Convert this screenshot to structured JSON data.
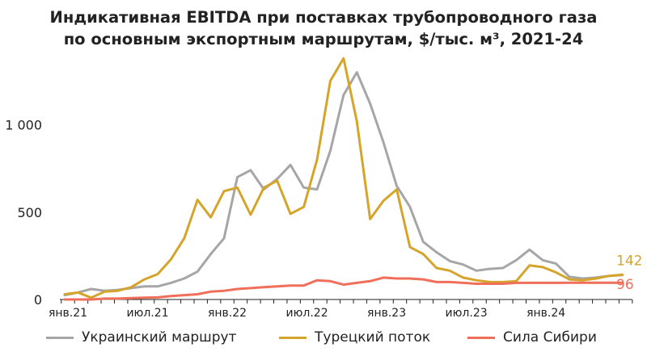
{
  "chart_data": {
    "type": "line",
    "title_line1": "Индикативная EBITDA при поставках трубопроводного газа",
    "title_line2": "по основным экспортным маршрутам, $/тыс. м³, 2021-24",
    "xlabel": "",
    "ylabel": "",
    "ylim": [
      0,
      1400
    ],
    "yticks": [
      {
        "value": 0,
        "label": "0"
      },
      {
        "value": 500,
        "label": "500"
      },
      {
        "value": 1000,
        "label": "1 000"
      }
    ],
    "xticks": [
      {
        "index": 0,
        "label": "янв.21"
      },
      {
        "index": 6,
        "label": "июл.21"
      },
      {
        "index": 12,
        "label": "янв.22"
      },
      {
        "index": 18,
        "label": "июл.22"
      },
      {
        "index": 24,
        "label": "янв.23"
      },
      {
        "index": 30,
        "label": "июл.23"
      },
      {
        "index": 36,
        "label": "янв.24"
      }
    ],
    "grid": false,
    "legend_position": "bottom",
    "series": [
      {
        "name": "Украинский маршрут",
        "color": "#a6a6a6",
        "values": [
          25,
          40,
          60,
          50,
          55,
          65,
          75,
          75,
          95,
          120,
          160,
          260,
          350,
          700,
          740,
          630,
          690,
          770,
          640,
          630,
          850,
          1170,
          1300,
          1120,
          900,
          650,
          530,
          330,
          270,
          220,
          200,
          165,
          175,
          180,
          225,
          285,
          225,
          205,
          130,
          120,
          125,
          135,
          140
        ]
      },
      {
        "name": "Турецкий поток",
        "color": "#d4a52a",
        "values": [
          30,
          40,
          10,
          45,
          50,
          70,
          115,
          145,
          230,
          350,
          570,
          470,
          620,
          640,
          485,
          640,
          680,
          490,
          530,
          800,
          1250,
          1380,
          1020,
          460,
          565,
          630,
          300,
          260,
          180,
          165,
          125,
          110,
          100,
          100,
          105,
          195,
          185,
          155,
          115,
          110,
          120,
          135,
          142
        ]
      },
      {
        "name": "Сила Сибири",
        "color": "#ef6f5b",
        "values": [
          0,
          0,
          0,
          5,
          5,
          8,
          10,
          12,
          20,
          25,
          30,
          45,
          50,
          60,
          65,
          70,
          75,
          80,
          80,
          110,
          105,
          85,
          95,
          105,
          125,
          120,
          120,
          115,
          100,
          100,
          95,
          90,
          90,
          90,
          95,
          95,
          95,
          95,
          96,
          96,
          96,
          96,
          96
        ]
      }
    ],
    "end_labels": [
      {
        "series": 1,
        "text": "142"
      },
      {
        "series": 2,
        "text": "96"
      }
    ]
  }
}
